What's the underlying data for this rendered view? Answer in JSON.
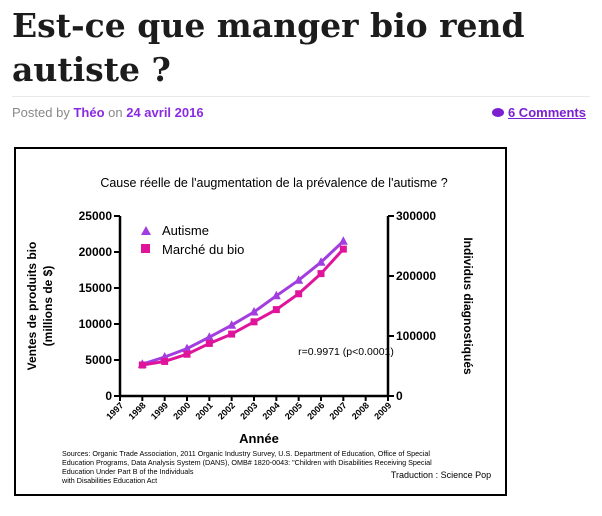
{
  "article": {
    "title": "Est-ce que manger bio rend autiste ?",
    "posted_by_label": "Posted by",
    "author": "Théo",
    "on_label": "on",
    "date": "24 avril 2016",
    "comments": "6 Comments"
  },
  "colors": {
    "autisme": "#a23de0",
    "bio": "#e0149a",
    "link": "#8a2be2"
  },
  "chart_data": {
    "type": "line",
    "title": "Cause réelle de l'augmentation de la prévalence de l'autisme ?",
    "xlabel": "Année",
    "ylabel_left": "Ventes de produits bio\n(millions de $)",
    "ylabel_right": "Individus diagnostiqués",
    "x": [
      1998,
      1999,
      2000,
      2001,
      2002,
      2003,
      2004,
      2005,
      2006,
      2007
    ],
    "x_ticks": [
      "1997",
      "1998",
      "1999",
      "2000",
      "2001",
      "2002",
      "2003",
      "2004",
      "2005",
      "2006",
      "2007",
      "2008",
      "2009"
    ],
    "y_left_ticks": [
      "0",
      "5000",
      "10000",
      "15000",
      "20000",
      "25000"
    ],
    "y_right_ticks": [
      "0",
      "100000",
      "200000",
      "300000"
    ],
    "ylim_left": [
      0,
      25000
    ],
    "ylim_right": [
      0,
      300000
    ],
    "xlim": [
      1997,
      2009
    ],
    "series": [
      {
        "name": "Autisme",
        "axis": "right",
        "marker": "triangle",
        "values": [
          53000,
          65000,
          79000,
          98000,
          118000,
          140000,
          167000,
          193000,
          223000,
          258000
        ]
      },
      {
        "name": "Marché du bio",
        "axis": "left",
        "marker": "square",
        "values": [
          4300,
          4800,
          5800,
          7300,
          8600,
          10300,
          12000,
          14200,
          17000,
          20400
        ]
      }
    ],
    "legend_position": "top-left",
    "annotation": "r=0.9971 (p<0.0001)",
    "sources": [
      "Sources: Organic Trade Association,  2011 Organic Industry Survey, U.S. Department of Education, Office of Special",
      "Education Programs, Data Analysis System (DANS), OMB# 1820-0043: \"Children with Disabilities Receiving Special",
      "Education Under Part B of the Individuals",
      "with Disabilities Education Act"
    ],
    "translation": "Traduction : Science Pop",
    "grid": false
  }
}
